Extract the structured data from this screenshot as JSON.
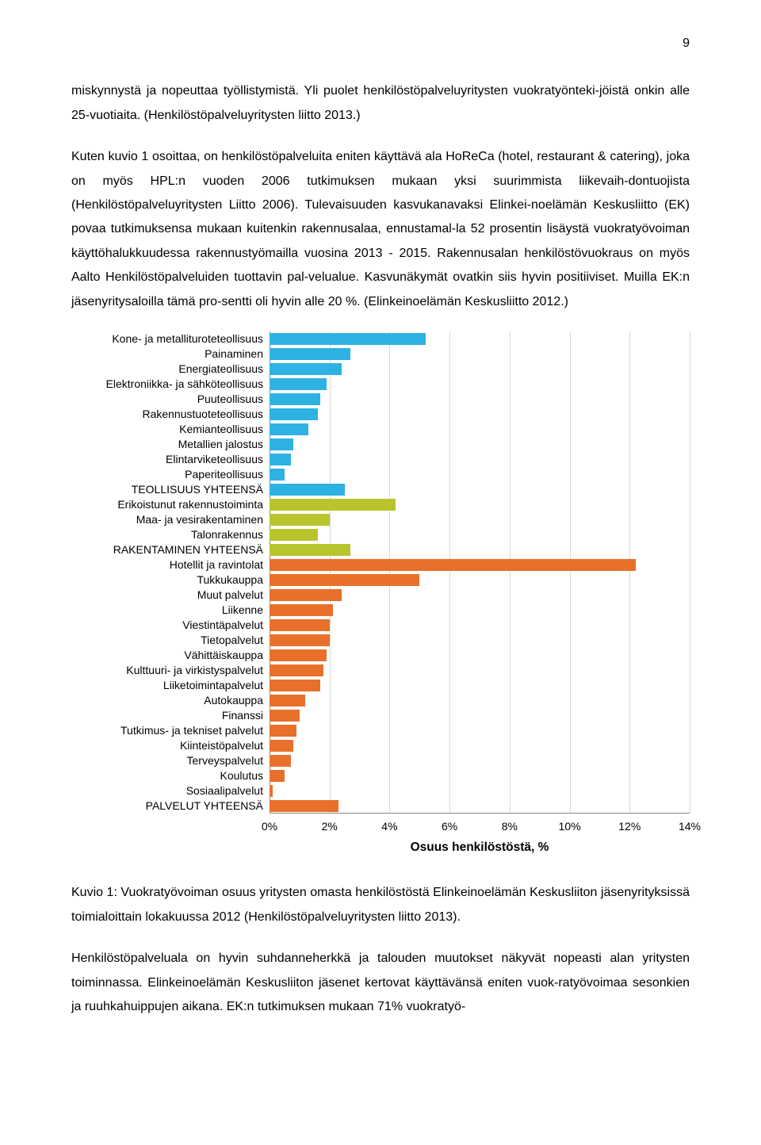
{
  "page_number": "9",
  "paragraphs": {
    "p1": "miskynnystä ja nopeuttaa työllistymistä. Yli puolet henkilöstöpalveluyritysten vuokratyönteki-jöistä onkin alle 25-vuotiaita. (Henkilöstöpalveluyritysten liitto 2013.)",
    "p2": "Kuten kuvio 1 osoittaa, on henkilöstöpalveluita eniten käyttävä ala HoReCa (hotel, restaurant & catering), joka on myös HPL:n vuoden 2006 tutkimuksen mukaan yksi suurimmista liikevaih-dontuojista (Henkilöstöpalveluyritysten Liitto 2006). Tulevaisuuden kasvukanavaksi Elinkei-noelämän Keskusliitto (EK) povaa tutkimuksensa mukaan kuitenkin rakennusalaa, ennustamal-la 52 prosentin lisäystä vuokratyövoiman käyttöhalukkuudessa rakennustyömailla vuosina 2013 - 2015. Rakennusalan henkilöstövuokraus on myös Aalto Henkilöstöpalveluiden tuottavin pal-velualue. Kasvunäkymät ovatkin siis hyvin positiiviset. Muilla EK:n jäsenyritysaloilla tämä pro-sentti oli hyvin alle 20 %. (Elinkeinoelämän Keskusliitto 2012.)",
    "caption": "Kuvio 1: Vuokratyövoiman osuus yritysten omasta henkilöstöstä Elinkeinoelämän Keskusliiton jäsenyrityksissä toimialoittain lokakuussa 2012 (Henkilöstöpalveluyritysten liitto 2013).",
    "p3": "Henkilöstöpalveluala on hyvin suhdanneherkkä ja talouden muutokset näkyvät nopeasti alan yritysten toiminnassa. Elinkeinoelämän Keskusliiton jäsenet kertovat käyttävänsä eniten vuok-ratyövoimaa sesonkien ja ruuhkahuippujen aikana. EK:n tutkimuksen mukaan 71% vuokratyö-"
  },
  "chart": {
    "type": "bar-horizontal",
    "x_label": "Osuus henkilöstöstä, %",
    "x_max": 14,
    "x_ticks": [
      "0%",
      "2%",
      "4%",
      "6%",
      "8%",
      "10%",
      "12%",
      "14%"
    ],
    "colors": {
      "teollisuus": "#2db2e3",
      "rakentaminen": "#b9c42d",
      "palvelut": "#e8702a",
      "grid": "#d9d9d9",
      "text": "#000000",
      "background": "#ffffff"
    },
    "rows": [
      {
        "label": "Kone- ja metallituroteteollisuus",
        "value": 5.2,
        "group": "teollisuus",
        "bold": false
      },
      {
        "label": "Painaminen",
        "value": 2.7,
        "group": "teollisuus",
        "bold": false
      },
      {
        "label": "Energiateollisuus",
        "value": 2.4,
        "group": "teollisuus",
        "bold": false
      },
      {
        "label": "Elektroniikka- ja sähköteollisuus",
        "value": 1.9,
        "group": "teollisuus",
        "bold": false
      },
      {
        "label": "Puuteollisuus",
        "value": 1.7,
        "group": "teollisuus",
        "bold": false
      },
      {
        "label": "Rakennustuoteteollisuus",
        "value": 1.6,
        "group": "teollisuus",
        "bold": false
      },
      {
        "label": "Kemianteollisuus",
        "value": 1.3,
        "group": "teollisuus",
        "bold": false
      },
      {
        "label": "Metallien jalostus",
        "value": 0.8,
        "group": "teollisuus",
        "bold": false
      },
      {
        "label": "Elintarviketeollisuus",
        "value": 0.7,
        "group": "teollisuus",
        "bold": false
      },
      {
        "label": "Paperiteollisuus",
        "value": 0.5,
        "group": "teollisuus",
        "bold": false
      },
      {
        "label": "TEOLLISUUS YHTEENSÄ",
        "value": 2.5,
        "group": "teollisuus",
        "bold": true
      },
      {
        "label": "Erikoistunut rakennustoiminta",
        "value": 4.2,
        "group": "rakentaminen",
        "bold": false
      },
      {
        "label": "Maa- ja vesirakentaminen",
        "value": 2.0,
        "group": "rakentaminen",
        "bold": false
      },
      {
        "label": "Talonrakennus",
        "value": 1.6,
        "group": "rakentaminen",
        "bold": false
      },
      {
        "label": "RAKENTAMINEN YHTEENSÄ",
        "value": 2.7,
        "group": "rakentaminen",
        "bold": true
      },
      {
        "label": "Hotellit ja ravintolat",
        "value": 12.2,
        "group": "palvelut",
        "bold": false
      },
      {
        "label": "Tukkukauppa",
        "value": 5.0,
        "group": "palvelut",
        "bold": false
      },
      {
        "label": "Muut palvelut",
        "value": 2.4,
        "group": "palvelut",
        "bold": false
      },
      {
        "label": "Liikenne",
        "value": 2.1,
        "group": "palvelut",
        "bold": false
      },
      {
        "label": "Viestintäpalvelut",
        "value": 2.0,
        "group": "palvelut",
        "bold": false
      },
      {
        "label": "Tietopalvelut",
        "value": 2.0,
        "group": "palvelut",
        "bold": false
      },
      {
        "label": "Vähittäiskauppa",
        "value": 1.9,
        "group": "palvelut",
        "bold": false
      },
      {
        "label": "Kulttuuri- ja virkistyspalvelut",
        "value": 1.8,
        "group": "palvelut",
        "bold": false
      },
      {
        "label": "Liiketoimintapalvelut",
        "value": 1.7,
        "group": "palvelut",
        "bold": false
      },
      {
        "label": "Autokauppa",
        "value": 1.2,
        "group": "palvelut",
        "bold": false
      },
      {
        "label": "Finanssi",
        "value": 1.0,
        "group": "palvelut",
        "bold": false
      },
      {
        "label": "Tutkimus- ja tekniset palvelut",
        "value": 0.9,
        "group": "palvelut",
        "bold": false
      },
      {
        "label": "Kiinteistöpalvelut",
        "value": 0.8,
        "group": "palvelut",
        "bold": false
      },
      {
        "label": "Terveyspalvelut",
        "value": 0.7,
        "group": "palvelut",
        "bold": false
      },
      {
        "label": "Koulutus",
        "value": 0.5,
        "group": "palvelut",
        "bold": false
      },
      {
        "label": "Sosiaalipalvelut",
        "value": 0.1,
        "group": "palvelut",
        "bold": false
      },
      {
        "label": "PALVELUT YHTEENSÄ",
        "value": 2.3,
        "group": "palvelut",
        "bold": true
      }
    ]
  }
}
